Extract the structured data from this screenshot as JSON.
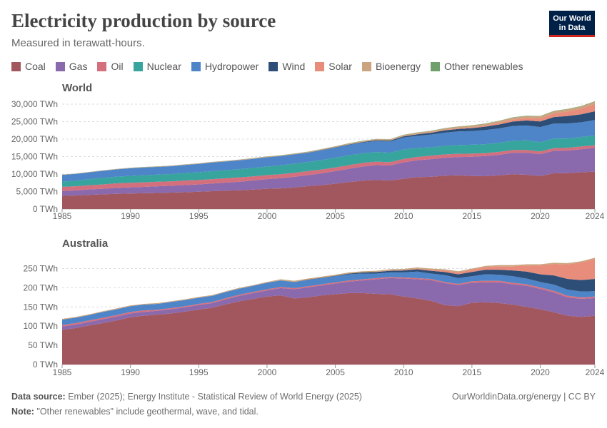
{
  "header": {
    "title": "Electricity production by source",
    "subtitle": "Measured in terawatt-hours.",
    "logo_line1": "Our World",
    "logo_line2": "in Data"
  },
  "legend": [
    {
      "name": "Coal",
      "color": "#a2575f"
    },
    {
      "name": "Gas",
      "color": "#8a69ac"
    },
    {
      "name": "Oil",
      "color": "#d46f7e"
    },
    {
      "name": "Nuclear",
      "color": "#37a49d"
    },
    {
      "name": "Hydropower",
      "color": "#4d85c8"
    },
    {
      "name": "Wind",
      "color": "#2d4e77"
    },
    {
      "name": "Solar",
      "color": "#e88d7b"
    },
    {
      "name": "Bioenergy",
      "color": "#c9a47e"
    },
    {
      "name": "Other renewables",
      "color": "#6fa06c"
    }
  ],
  "footer": {
    "source_label": "Data source:",
    "source_text": "Ember (2025); Energy Institute - Statistical Review of World Energy (2025)",
    "note_label": "Note:",
    "note_text": "\"Other renewables\" include geothermal, wave, and tidal.",
    "url": "OurWorldinData.org/energy | CC BY"
  },
  "chart_data": [
    {
      "type": "area",
      "stacked": true,
      "title": "World",
      "x": [
        1985,
        1986,
        1987,
        1988,
        1989,
        1990,
        1991,
        1992,
        1993,
        1994,
        1995,
        1996,
        1997,
        1998,
        1999,
        2000,
        2001,
        2002,
        2003,
        2004,
        2005,
        2006,
        2007,
        2008,
        2009,
        2010,
        2011,
        2012,
        2013,
        2014,
        2015,
        2016,
        2017,
        2018,
        2019,
        2020,
        2021,
        2022,
        2023,
        2024
      ],
      "ylim": [
        0,
        30000
      ],
      "yticks": [
        0,
        5000,
        10000,
        15000,
        20000,
        25000,
        30000
      ],
      "ytick_labels": [
        "0 TWh",
        "5,000 TWh",
        "10,000 TWh",
        "15,000 TWh",
        "20,000 TWh",
        "25,000 TWh",
        "30,000 TWh"
      ],
      "xticks": [
        1985,
        1990,
        1995,
        2000,
        2005,
        2010,
        2015,
        2020,
        2024
      ],
      "grid": true,
      "series": [
        {
          "name": "Coal",
          "values": [
            3750,
            3850,
            4050,
            4200,
            4350,
            4450,
            4520,
            4600,
            4700,
            4800,
            4950,
            5100,
            5250,
            5350,
            5550,
            5800,
            5900,
            6150,
            6550,
            6850,
            7250,
            7700,
            8100,
            8300,
            8150,
            8650,
            9100,
            9200,
            9550,
            9650,
            9450,
            9400,
            9650,
            9950,
            9800,
            9450,
            10200,
            10250,
            10500,
            10700
          ]
        },
        {
          "name": "Gas",
          "values": [
            1400,
            1450,
            1550,
            1600,
            1700,
            1750,
            1800,
            1900,
            1950,
            2050,
            2100,
            2200,
            2300,
            2450,
            2600,
            2750,
            2900,
            3050,
            3150,
            3350,
            3600,
            3800,
            4050,
            4250,
            4300,
            4700,
            4850,
            5050,
            5100,
            5200,
            5500,
            5750,
            5850,
            6150,
            6300,
            6250,
            6450,
            6450,
            6600,
            6800
          ]
        },
        {
          "name": "Oil",
          "values": [
            1200,
            1200,
            1200,
            1250,
            1300,
            1300,
            1300,
            1300,
            1250,
            1300,
            1250,
            1250,
            1250,
            1250,
            1200,
            1150,
            1150,
            1150,
            1150,
            1100,
            1050,
            1050,
            1050,
            1000,
            950,
            950,
            950,
            1000,
            950,
            950,
            900,
            850,
            850,
            800,
            800,
            750,
            750,
            800,
            800,
            750
          ]
        },
        {
          "name": "Nuclear",
          "values": [
            1480,
            1600,
            1750,
            1850,
            1900,
            2000,
            2050,
            2050,
            2100,
            2150,
            2200,
            2300,
            2300,
            2350,
            2400,
            2450,
            2550,
            2600,
            2600,
            2700,
            2750,
            2800,
            2750,
            2750,
            2700,
            2750,
            2550,
            2400,
            2450,
            2500,
            2550,
            2550,
            2600,
            2650,
            2750,
            2650,
            2750,
            2650,
            2700,
            2800
          ]
        },
        {
          "name": "Hydropower",
          "values": [
            1950,
            1950,
            1950,
            2050,
            2100,
            2150,
            2200,
            2200,
            2250,
            2300,
            2400,
            2450,
            2500,
            2550,
            2600,
            2650,
            2600,
            2650,
            2650,
            2800,
            2900,
            3000,
            3050,
            3150,
            3200,
            3400,
            3500,
            3650,
            3800,
            3900,
            3900,
            4050,
            4100,
            4200,
            4250,
            4350,
            4300,
            4350,
            4200,
            4400
          ]
        },
        {
          "name": "Wind",
          "values": [
            0,
            0,
            0,
            0,
            0,
            5,
            5,
            5,
            5,
            10,
            10,
            10,
            10,
            15,
            20,
            30,
            40,
            50,
            60,
            80,
            100,
            130,
            170,
            220,
            270,
            340,
            440,
            520,
            640,
            710,
            830,
            960,
            1140,
            1270,
            1420,
            1600,
            1850,
            2100,
            2300,
            2500
          ]
        },
        {
          "name": "Solar",
          "values": [
            0,
            0,
            0,
            0,
            0,
            0,
            0,
            0,
            0,
            0,
            0,
            0,
            0,
            0,
            0,
            0,
            0,
            0,
            0,
            0,
            5,
            5,
            10,
            15,
            20,
            30,
            60,
            100,
            140,
            190,
            250,
            330,
            450,
            580,
            700,
            850,
            1050,
            1300,
            1600,
            2100
          ]
        },
        {
          "name": "Bioenergy",
          "values": [
            60,
            70,
            80,
            90,
            100,
            110,
            115,
            120,
            125,
            130,
            140,
            145,
            150,
            160,
            170,
            180,
            190,
            200,
            210,
            230,
            250,
            270,
            290,
            310,
            330,
            360,
            390,
            420,
            440,
            460,
            490,
            510,
            530,
            560,
            590,
            620,
            650,
            660,
            670,
            690
          ]
        },
        {
          "name": "Other renewables",
          "values": [
            30,
            30,
            35,
            35,
            40,
            40,
            40,
            40,
            45,
            45,
            45,
            45,
            45,
            45,
            50,
            50,
            50,
            50,
            55,
            55,
            60,
            60,
            60,
            65,
            65,
            70,
            70,
            70,
            75,
            75,
            80,
            80,
            85,
            85,
            90,
            90,
            95,
            95,
            95,
            100
          ]
        }
      ]
    },
    {
      "type": "area",
      "stacked": true,
      "title": "Australia",
      "x": [
        1985,
        1986,
        1987,
        1988,
        1989,
        1990,
        1991,
        1992,
        1993,
        1994,
        1995,
        1996,
        1997,
        1998,
        1999,
        2000,
        2001,
        2002,
        2003,
        2004,
        2005,
        2006,
        2007,
        2008,
        2009,
        2010,
        2011,
        2012,
        2013,
        2014,
        2015,
        2016,
        2017,
        2018,
        2019,
        2020,
        2021,
        2022,
        2023,
        2024
      ],
      "ylim": [
        0,
        275
      ],
      "yticks": [
        0,
        50,
        100,
        150,
        200,
        250
      ],
      "ytick_labels": [
        "0 TWh",
        "50 TWh",
        "100 TWh",
        "150 TWh",
        "200 TWh",
        "250 TWh"
      ],
      "xticks": [
        1985,
        1990,
        1995,
        2000,
        2005,
        2010,
        2015,
        2020,
        2024
      ],
      "grid": true,
      "series": [
        {
          "name": "Coal",
          "values": [
            90,
            95,
            102,
            108,
            115,
            123,
            127,
            130,
            133,
            138,
            143,
            148,
            157,
            165,
            171,
            177,
            180,
            172,
            175,
            180,
            183,
            186,
            186,
            184,
            183,
            177,
            172,
            166,
            155,
            152,
            161,
            162,
            160,
            156,
            150,
            144,
            136,
            127,
            124,
            127
          ]
        },
        {
          "name": "Gas",
          "values": [
            9,
            9,
            9,
            10,
            10,
            10,
            10,
            10,
            11,
            11,
            12,
            12,
            13,
            14,
            15,
            16,
            19,
            24,
            26,
            26,
            28,
            30,
            33,
            38,
            42,
            47,
            50,
            54,
            57,
            55,
            52,
            52,
            54,
            53,
            55,
            53,
            52,
            48,
            47,
            46
          ]
        },
        {
          "name": "Oil",
          "values": [
            4,
            4,
            4,
            4,
            4,
            4,
            4,
            3,
            3,
            3,
            3,
            3,
            3,
            3,
            3,
            3,
            3,
            3,
            3,
            3,
            3,
            3,
            3,
            3,
            3,
            3,
            3,
            3,
            3,
            3,
            4,
            4,
            4,
            4,
            4,
            4,
            4,
            4,
            4,
            4
          ]
        },
        {
          "name": "Nuclear",
          "values": [
            0,
            0,
            0,
            0,
            0,
            0,
            0,
            0,
            0,
            0,
            0,
            0,
            0,
            0,
            0,
            0,
            0,
            0,
            0,
            0,
            0,
            0,
            0,
            0,
            0,
            0,
            0,
            0,
            0,
            0,
            0,
            0,
            0,
            0,
            0,
            0,
            0,
            0,
            0,
            0
          ]
        },
        {
          "name": "Hydropower",
          "values": [
            14,
            14,
            14,
            15,
            15,
            15,
            15,
            15,
            16,
            16,
            16,
            16,
            16,
            16,
            16,
            17,
            17,
            16,
            16,
            16,
            16,
            16,
            15,
            12,
            12,
            13,
            17,
            14,
            18,
            15,
            13,
            17,
            16,
            17,
            15,
            14,
            16,
            16,
            15,
            14
          ]
        },
        {
          "name": "Wind",
          "values": [
            0,
            0,
            0,
            0,
            0,
            0,
            0,
            0,
            0,
            0,
            0,
            0,
            0,
            0,
            0,
            0,
            0,
            0,
            1,
            1,
            1,
            2,
            3,
            4,
            4,
            5,
            6,
            7,
            8,
            10,
            11,
            12,
            13,
            15,
            18,
            20,
            24,
            28,
            30,
            32
          ]
        },
        {
          "name": "Solar",
          "values": [
            0,
            0,
            0,
            0,
            0,
            0,
            0,
            0,
            0,
            0,
            0,
            0,
            0,
            0,
            0,
            0,
            0,
            0,
            0,
            0,
            0,
            0,
            0,
            0,
            1,
            1,
            2,
            3,
            4,
            5,
            6,
            7,
            9,
            11,
            16,
            23,
            30,
            38,
            46,
            52
          ]
        },
        {
          "name": "Bioenergy",
          "values": [
            2,
            2,
            2,
            2,
            2,
            2,
            2,
            2,
            2,
            2,
            2,
            2,
            2,
            2,
            2,
            2,
            3,
            3,
            3,
            3,
            3,
            3,
            3,
            3,
            3,
            3,
            3,
            3,
            3,
            3,
            3,
            3,
            3,
            3,
            3,
            3,
            3,
            3,
            3,
            3
          ]
        },
        {
          "name": "Other renewables",
          "values": [
            0,
            0,
            0,
            0,
            0,
            0,
            0,
            0,
            0,
            0,
            0,
            0,
            0,
            0,
            0,
            0,
            0,
            0,
            0,
            0,
            0,
            0,
            0,
            0,
            0,
            0,
            0,
            0,
            0,
            0,
            0,
            0,
            0,
            0,
            0,
            0,
            0,
            0,
            0,
            0
          ]
        }
      ]
    }
  ]
}
